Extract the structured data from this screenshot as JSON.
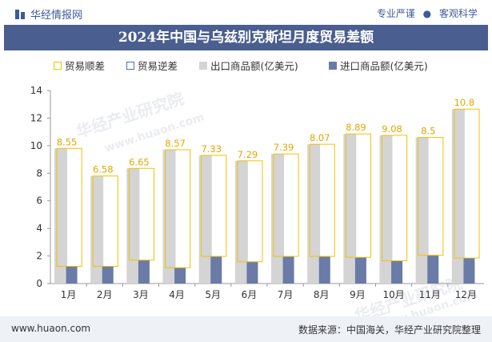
{
  "header": {
    "brand": "华经情报网",
    "tagline_left": "专业严谨",
    "tagline_sep": "●",
    "tagline_right": "客观科学"
  },
  "title": "2024年中国与乌兹别克斯坦月度贸易差额",
  "watermarks": [
    "华经产业研究院",
    "www.huaon.com",
    "华经产业研究院",
    "www.huaon.com"
  ],
  "footer": {
    "url": "www.huaon.com",
    "source": "数据来源：中国海关，华经产业研究院整理"
  },
  "colors": {
    "title_bg": "#4a5e8f",
    "surplus": "#f2c200",
    "deficit": "#4a6fb0",
    "export": "#d4d4d4",
    "import": "#6a7ba8"
  },
  "chart_data": {
    "type": "bar",
    "categories": [
      "1月",
      "2月",
      "3月",
      "4月",
      "5月",
      "6月",
      "7月",
      "8月",
      "9月",
      "10月",
      "11月",
      "12月"
    ],
    "series": [
      {
        "name": "贸易顺差",
        "values": [
          8.55,
          6.58,
          6.65,
          8.57,
          7.33,
          7.29,
          7.39,
          8.07,
          8.89,
          9.08,
          8.5,
          10.8
        ]
      },
      {
        "name": "贸易逆差",
        "values": [
          0,
          0,
          0,
          0,
          0,
          0,
          0,
          0,
          0,
          0,
          0,
          0
        ]
      },
      {
        "name": "出口商品额(亿美元)",
        "values": [
          9.8,
          7.8,
          8.35,
          9.7,
          9.3,
          8.9,
          9.4,
          10.1,
          10.85,
          10.75,
          10.6,
          12.65
        ]
      },
      {
        "name": "进口商品额(亿美元)",
        "values": [
          1.25,
          1.25,
          1.7,
          1.15,
          1.97,
          1.58,
          1.97,
          1.97,
          1.9,
          1.65,
          2.05,
          1.85
        ]
      }
    ],
    "data_labels": [
      "8.55",
      "6.58",
      "6.65",
      "8.57",
      "7.33",
      "7.29",
      "7.39",
      "8.07",
      "8.89",
      "9.08",
      "8.5",
      "10.8"
    ],
    "ylim": [
      0,
      14
    ],
    "yticks": [
      "0",
      "2",
      "4",
      "6",
      "8",
      "10",
      "12",
      "14"
    ],
    "grid": false,
    "legend_position": "top"
  }
}
